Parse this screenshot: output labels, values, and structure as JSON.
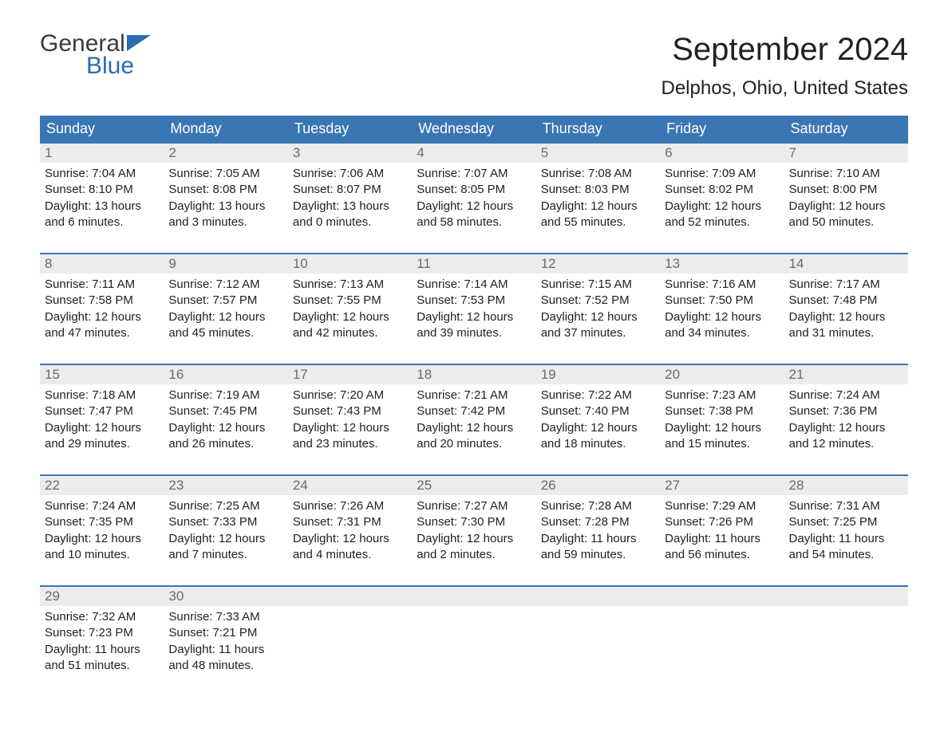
{
  "logo": {
    "word1": "General",
    "word2": "Blue",
    "icon_color": "#2a6cb0"
  },
  "title": "September 2024",
  "location": "Delphos, Ohio, United States",
  "colors": {
    "header_bg": "#3a76b4",
    "header_text": "#ffffff",
    "daynum_bg": "#ececec",
    "daynum_border": "#3a76b4",
    "daynum_text": "#6a6a6a",
    "body_text": "#222222"
  },
  "day_names": [
    "Sunday",
    "Monday",
    "Tuesday",
    "Wednesday",
    "Thursday",
    "Friday",
    "Saturday"
  ],
  "weeks": [
    [
      {
        "n": "1",
        "sunrise": "7:04 AM",
        "sunset": "8:10 PM",
        "dh": "13",
        "dm": "6"
      },
      {
        "n": "2",
        "sunrise": "7:05 AM",
        "sunset": "8:08 PM",
        "dh": "13",
        "dm": "3"
      },
      {
        "n": "3",
        "sunrise": "7:06 AM",
        "sunset": "8:07 PM",
        "dh": "13",
        "dm": "0"
      },
      {
        "n": "4",
        "sunrise": "7:07 AM",
        "sunset": "8:05 PM",
        "dh": "12",
        "dm": "58"
      },
      {
        "n": "5",
        "sunrise": "7:08 AM",
        "sunset": "8:03 PM",
        "dh": "12",
        "dm": "55"
      },
      {
        "n": "6",
        "sunrise": "7:09 AM",
        "sunset": "8:02 PM",
        "dh": "12",
        "dm": "52"
      },
      {
        "n": "7",
        "sunrise": "7:10 AM",
        "sunset": "8:00 PM",
        "dh": "12",
        "dm": "50"
      }
    ],
    [
      {
        "n": "8",
        "sunrise": "7:11 AM",
        "sunset": "7:58 PM",
        "dh": "12",
        "dm": "47"
      },
      {
        "n": "9",
        "sunrise": "7:12 AM",
        "sunset": "7:57 PM",
        "dh": "12",
        "dm": "45"
      },
      {
        "n": "10",
        "sunrise": "7:13 AM",
        "sunset": "7:55 PM",
        "dh": "12",
        "dm": "42"
      },
      {
        "n": "11",
        "sunrise": "7:14 AM",
        "sunset": "7:53 PM",
        "dh": "12",
        "dm": "39"
      },
      {
        "n": "12",
        "sunrise": "7:15 AM",
        "sunset": "7:52 PM",
        "dh": "12",
        "dm": "37"
      },
      {
        "n": "13",
        "sunrise": "7:16 AM",
        "sunset": "7:50 PM",
        "dh": "12",
        "dm": "34"
      },
      {
        "n": "14",
        "sunrise": "7:17 AM",
        "sunset": "7:48 PM",
        "dh": "12",
        "dm": "31"
      }
    ],
    [
      {
        "n": "15",
        "sunrise": "7:18 AM",
        "sunset": "7:47 PM",
        "dh": "12",
        "dm": "29"
      },
      {
        "n": "16",
        "sunrise": "7:19 AM",
        "sunset": "7:45 PM",
        "dh": "12",
        "dm": "26"
      },
      {
        "n": "17",
        "sunrise": "7:20 AM",
        "sunset": "7:43 PM",
        "dh": "12",
        "dm": "23"
      },
      {
        "n": "18",
        "sunrise": "7:21 AM",
        "sunset": "7:42 PM",
        "dh": "12",
        "dm": "20"
      },
      {
        "n": "19",
        "sunrise": "7:22 AM",
        "sunset": "7:40 PM",
        "dh": "12",
        "dm": "18"
      },
      {
        "n": "20",
        "sunrise": "7:23 AM",
        "sunset": "7:38 PM",
        "dh": "12",
        "dm": "15"
      },
      {
        "n": "21",
        "sunrise": "7:24 AM",
        "sunset": "7:36 PM",
        "dh": "12",
        "dm": "12"
      }
    ],
    [
      {
        "n": "22",
        "sunrise": "7:24 AM",
        "sunset": "7:35 PM",
        "dh": "12",
        "dm": "10"
      },
      {
        "n": "23",
        "sunrise": "7:25 AM",
        "sunset": "7:33 PM",
        "dh": "12",
        "dm": "7"
      },
      {
        "n": "24",
        "sunrise": "7:26 AM",
        "sunset": "7:31 PM",
        "dh": "12",
        "dm": "4"
      },
      {
        "n": "25",
        "sunrise": "7:27 AM",
        "sunset": "7:30 PM",
        "dh": "12",
        "dm": "2"
      },
      {
        "n": "26",
        "sunrise": "7:28 AM",
        "sunset": "7:28 PM",
        "dh": "11",
        "dm": "59"
      },
      {
        "n": "27",
        "sunrise": "7:29 AM",
        "sunset": "7:26 PM",
        "dh": "11",
        "dm": "56"
      },
      {
        "n": "28",
        "sunrise": "7:31 AM",
        "sunset": "7:25 PM",
        "dh": "11",
        "dm": "54"
      }
    ],
    [
      {
        "n": "29",
        "sunrise": "7:32 AM",
        "sunset": "7:23 PM",
        "dh": "11",
        "dm": "51"
      },
      {
        "n": "30",
        "sunrise": "7:33 AM",
        "sunset": "7:21 PM",
        "dh": "11",
        "dm": "48"
      },
      null,
      null,
      null,
      null,
      null
    ]
  ],
  "labels": {
    "sunrise": "Sunrise: ",
    "sunset": "Sunset: ",
    "daylight_a": "Daylight: ",
    "daylight_b": " hours and ",
    "daylight_c": " minutes."
  }
}
